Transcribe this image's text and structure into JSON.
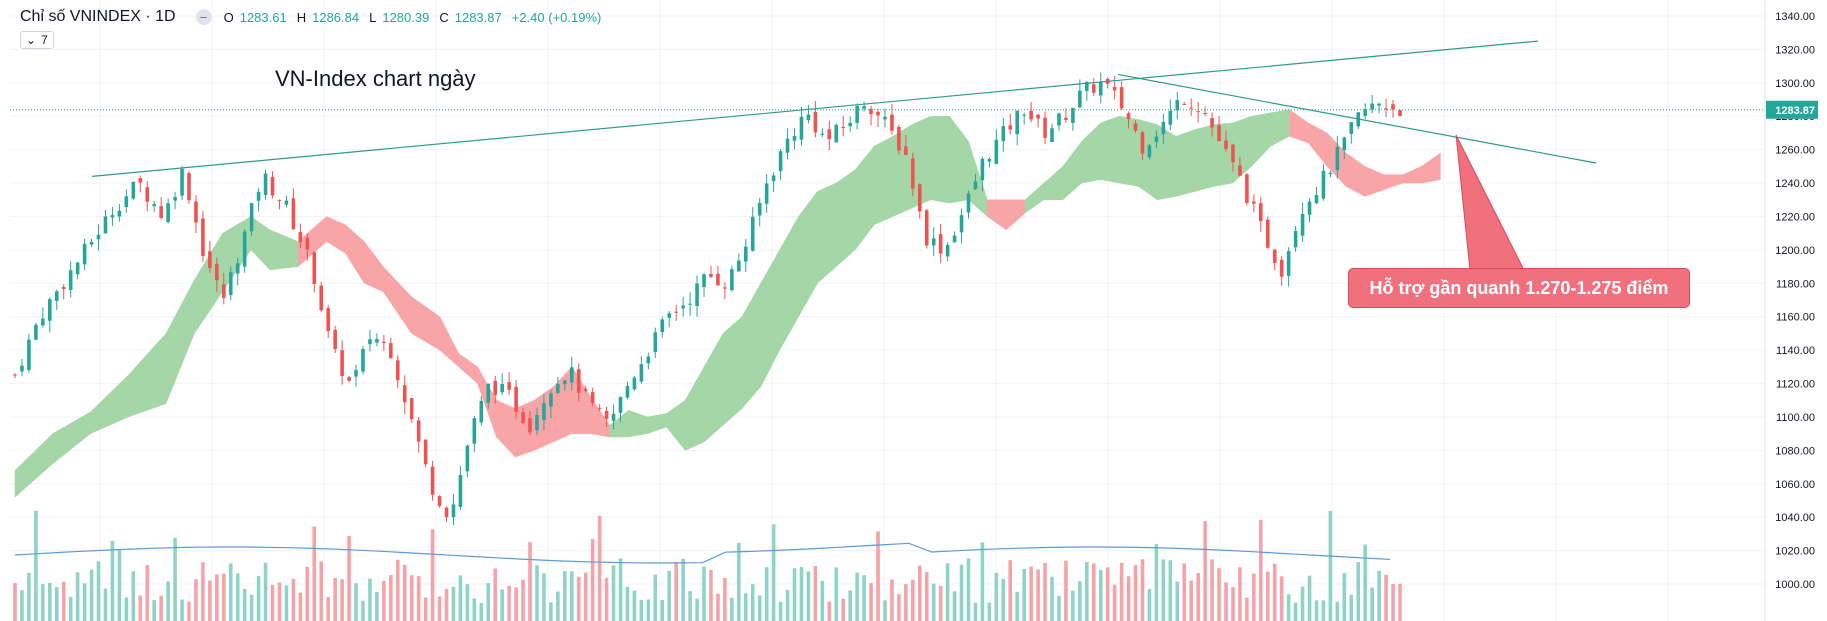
{
  "header": {
    "symbol": "Chỉ số VNINDEX · 1D",
    "collapse_icon": "minus",
    "open_label": "O",
    "open_value": "1283.61",
    "high_label": "H",
    "high_value": "1286.84",
    "low_label": "L",
    "low_value": "1280.39",
    "close_label": "C",
    "close_value": "1283.87",
    "change": "+2.40 (+0.19%)",
    "indicator_count": "7"
  },
  "overlay_title": "VN-Index chart ngày",
  "callout_text": "Hỗ trợ gần quanh 1.270-1.275 điểm",
  "price_tag": "1283.87",
  "colors": {
    "up": "#26a69a",
    "down": "#ef5350",
    "cloud_bull": "#a5d6a7",
    "cloud_bear": "#f8a5a8",
    "volume_up": "#8fd3c6",
    "volume_down": "#f5a3a8",
    "volume_ma": "#5b9bd5",
    "trendline": "#2e9a8a",
    "callout_bg": "#f0707d",
    "price_tag_bg": "#26a69a"
  },
  "chart_data": {
    "type": "candlestick",
    "y_ticks": [
      "1340.00",
      "1320.00",
      "1300.00",
      "1280.00",
      "1260.00",
      "1240.00",
      "1220.00",
      "1200.00",
      "1180.00",
      "1160.00",
      "1140.00",
      "1120.00",
      "1100.00",
      "1080.00",
      "1060.00",
      "1040.00",
      "1020.00",
      "1000.00"
    ],
    "ylim": [
      990,
      1345
    ],
    "last_price": 1283.87,
    "candles": 200,
    "close_path": [
      [
        0,
        1125
      ],
      [
        5,
        1160
      ],
      [
        12,
        1190
      ],
      [
        20,
        1225
      ],
      [
        25,
        1240
      ],
      [
        30,
        1220
      ],
      [
        34,
        1248
      ],
      [
        38,
        1200
      ],
      [
        42,
        1170
      ],
      [
        46,
        1205
      ],
      [
        50,
        1245
      ],
      [
        55,
        1225
      ],
      [
        60,
        1190
      ],
      [
        64,
        1140
      ],
      [
        68,
        1118
      ],
      [
        72,
        1150
      ],
      [
        76,
        1140
      ],
      [
        80,
        1100
      ],
      [
        84,
        1060
      ],
      [
        88,
        1040
      ],
      [
        92,
        1090
      ],
      [
        96,
        1120
      ],
      [
        100,
        1112
      ],
      [
        104,
        1095
      ],
      [
        108,
        1118
      ],
      [
        112,
        1128
      ],
      [
        116,
        1108
      ],
      [
        120,
        1095
      ],
      [
        124,
        1120
      ],
      [
        128,
        1140
      ],
      [
        132,
        1160
      ],
      [
        136,
        1170
      ],
      [
        140,
        1185
      ],
      [
        144,
        1180
      ],
      [
        148,
        1205
      ],
      [
        152,
        1240
      ],
      [
        156,
        1265
      ],
      [
        160,
        1282
      ],
      [
        164,
        1265
      ],
      [
        168,
        1275
      ],
      [
        172,
        1290
      ],
      [
        176,
        1275
      ],
      [
        180,
        1258
      ],
      [
        184,
        1208
      ],
      [
        188,
        1200
      ],
      [
        192,
        1225
      ],
      [
        196,
        1255
      ],
      [
        200,
        1270
      ],
      [
        204,
        1285
      ],
      [
        208,
        1270
      ],
      [
        212,
        1280
      ],
      [
        216,
        1295
      ],
      [
        220,
        1300
      ],
      [
        224,
        1285
      ],
      [
        228,
        1262
      ],
      [
        232,
        1275
      ],
      [
        236,
        1292
      ],
      [
        240,
        1285
      ],
      [
        244,
        1262
      ],
      [
        248,
        1240
      ],
      [
        252,
        1212
      ],
      [
        256,
        1188
      ],
      [
        260,
        1225
      ],
      [
        264,
        1240
      ],
      [
        268,
        1260
      ],
      [
        272,
        1282
      ],
      [
        276,
        1288
      ],
      [
        280,
        1284
      ]
    ],
    "ichimoku_cloud": [
      [
        0,
        1052,
        1068
      ],
      [
        8,
        1072,
        1090
      ],
      [
        16,
        1090,
        1103
      ],
      [
        24,
        1100,
        1125
      ],
      [
        32,
        1108,
        1150
      ],
      [
        38,
        1150,
        1182
      ],
      [
        44,
        1175,
        1210
      ],
      [
        50,
        1200,
        1220
      ],
      [
        54,
        1188,
        1212
      ],
      [
        60,
        1190,
        1205
      ],
      [
        66,
        1205,
        1220
      ],
      [
        70,
        1198,
        1215
      ],
      [
        74,
        1180,
        1205
      ],
      [
        78,
        1175,
        1190
      ],
      [
        84,
        1150,
        1172
      ],
      [
        90,
        1140,
        1160
      ],
      [
        94,
        1130,
        1138
      ],
      [
        98,
        1120,
        1130
      ],
      [
        102,
        1088,
        1110
      ],
      [
        106,
        1076,
        1105
      ],
      [
        110,
        1080,
        1110
      ],
      [
        114,
        1085,
        1118
      ],
      [
        118,
        1090,
        1130
      ],
      [
        122,
        1090,
        1112
      ],
      [
        126,
        1088,
        1095
      ],
      [
        130,
        1088,
        1104
      ],
      [
        134,
        1090,
        1100
      ],
      [
        138,
        1094,
        1102
      ],
      [
        142,
        1080,
        1110
      ],
      [
        146,
        1085,
        1130
      ],
      [
        150,
        1095,
        1150
      ],
      [
        154,
        1105,
        1160
      ],
      [
        158,
        1118,
        1180
      ],
      [
        162,
        1140,
        1200
      ],
      [
        166,
        1160,
        1220
      ],
      [
        170,
        1180,
        1235
      ],
      [
        174,
        1190,
        1240
      ],
      [
        178,
        1200,
        1248
      ],
      [
        182,
        1215,
        1262
      ],
      [
        186,
        1220,
        1268
      ],
      [
        190,
        1225,
        1275
      ],
      [
        194,
        1230,
        1280
      ],
      [
        198,
        1228,
        1280
      ],
      [
        202,
        1230,
        1265
      ],
      [
        206,
        1220,
        1230
      ],
      [
        210,
        1212,
        1230
      ],
      [
        214,
        1222,
        1230
      ],
      [
        218,
        1230,
        1240
      ],
      [
        222,
        1230,
        1250
      ],
      [
        226,
        1240,
        1265
      ],
      [
        230,
        1242,
        1276
      ],
      [
        234,
        1240,
        1280
      ],
      [
        238,
        1238,
        1278
      ],
      [
        242,
        1230,
        1275
      ],
      [
        246,
        1232,
        1268
      ],
      [
        250,
        1235,
        1272
      ],
      [
        254,
        1238,
        1275
      ],
      [
        258,
        1240,
        1276
      ],
      [
        262,
        1250,
        1280
      ],
      [
        266,
        1262,
        1282
      ],
      [
        270,
        1268,
        1284
      ],
      [
        274,
        1264,
        1276
      ],
      [
        278,
        1250,
        1270
      ],
      [
        282,
        1238,
        1258
      ],
      [
        286,
        1232,
        1250
      ],
      [
        290,
        1236,
        1245
      ],
      [
        294,
        1240,
        1245
      ],
      [
        298,
        1240,
        1250
      ],
      [
        302,
        1242,
        1258
      ]
    ],
    "trendlines": [
      {
        "from": [
          12,
          1244
        ],
        "to": [
          302,
          1325
        ]
      },
      {
        "from": [
          218,
          1305
        ],
        "to": [
          314,
          1252
        ]
      }
    ]
  }
}
